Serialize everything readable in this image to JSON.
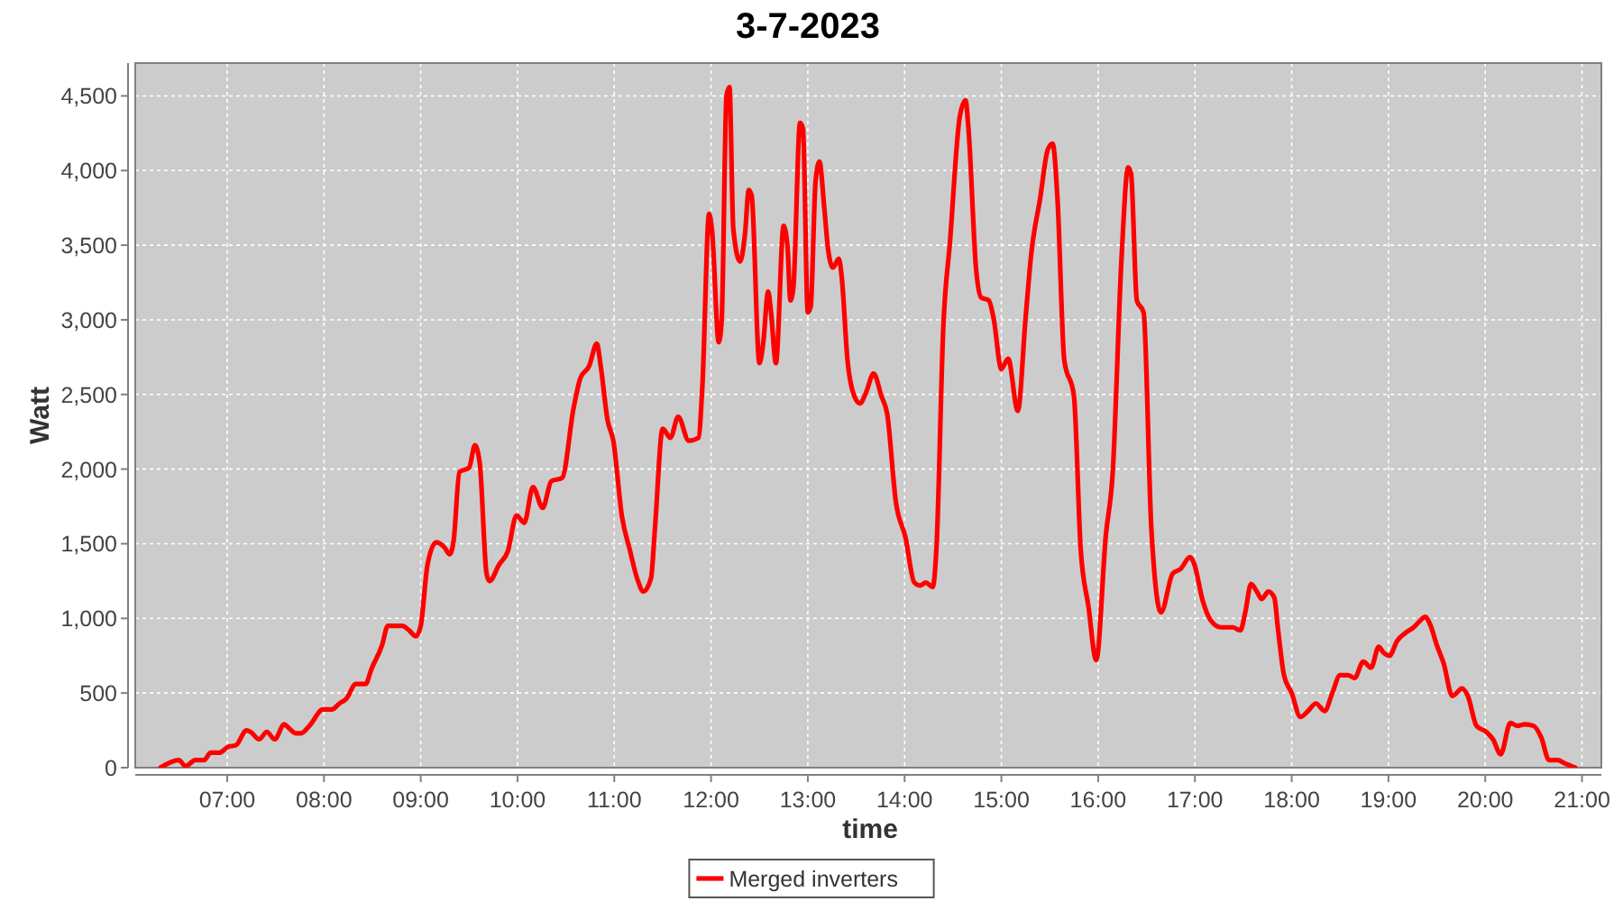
{
  "chart_data": {
    "type": "line",
    "title": "3-7-2023",
    "xlabel": "time",
    "ylabel": "Watt",
    "xlim": [
      6.05,
      21.2
    ],
    "ylim": [
      0,
      4720
    ],
    "xticks": [
      {
        "value": 7,
        "label": "07:00"
      },
      {
        "value": 8,
        "label": "08:00"
      },
      {
        "value": 9,
        "label": "09:00"
      },
      {
        "value": 10,
        "label": "10:00"
      },
      {
        "value": 11,
        "label": "11:00"
      },
      {
        "value": 12,
        "label": "12:00"
      },
      {
        "value": 13,
        "label": "13:00"
      },
      {
        "value": 14,
        "label": "14:00"
      },
      {
        "value": 15,
        "label": "15:00"
      },
      {
        "value": 16,
        "label": "16:00"
      },
      {
        "value": 17,
        "label": "17:00"
      },
      {
        "value": 18,
        "label": "18:00"
      },
      {
        "value": 19,
        "label": "19:00"
      },
      {
        "value": 20,
        "label": "20:00"
      },
      {
        "value": 21,
        "label": "21:00"
      }
    ],
    "yticks": [
      0,
      500,
      {
        "value": 1000,
        "label": "1,000"
      },
      {
        "value": 1500,
        "label": "1,500"
      },
      {
        "value": 2000,
        "label": "2,000"
      },
      {
        "value": 2500,
        "label": "2,500"
      },
      {
        "value": 3000,
        "label": "3,000"
      },
      {
        "value": 3500,
        "label": "3,500"
      },
      {
        "value": 4000,
        "label": "4,000"
      },
      {
        "value": 4500,
        "label": "4,500"
      }
    ],
    "grid": true,
    "legend": "bottom",
    "line_style": "solid",
    "x": [
      6.31,
      6.5,
      6.57,
      6.67,
      6.76,
      6.83,
      6.92,
      7.01,
      7.09,
      7.2,
      7.24,
      7.33,
      7.41,
      7.49,
      7.59,
      7.63,
      7.71,
      7.76,
      7.85,
      7.99,
      8.08,
      8.16,
      8.23,
      8.33,
      8.43,
      8.49,
      8.6,
      8.66,
      8.81,
      8.88,
      8.95,
      9.0,
      9.07,
      9.16,
      9.24,
      9.3,
      9.34,
      9.4,
      9.5,
      9.56,
      9.61,
      9.68,
      9.71,
      9.81,
      9.9,
      9.99,
      10.07,
      10.16,
      10.26,
      10.35,
      10.46,
      10.58,
      10.65,
      10.74,
      10.82,
      10.86,
      10.93,
      10.99,
      11.08,
      11.16,
      11.24,
      11.3,
      11.38,
      11.42,
      11.5,
      11.58,
      11.66,
      11.77,
      11.87,
      11.91,
      11.98,
      12.01,
      12.08,
      12.11,
      12.16,
      12.19,
      12.23,
      12.3,
      12.35,
      12.39,
      12.42,
      12.5,
      12.54,
      12.59,
      12.62,
      12.67,
      12.75,
      12.79,
      12.82,
      12.85,
      12.92,
      12.95,
      13.0,
      13.03,
      13.08,
      13.12,
      13.17,
      13.21,
      13.26,
      13.32,
      13.35,
      13.41,
      13.48,
      13.54,
      13.6,
      13.68,
      13.76,
      13.82,
      13.91,
      14.01,
      14.1,
      14.16,
      14.22,
      14.29,
      14.33,
      14.4,
      14.47,
      14.57,
      14.63,
      14.66,
      14.74,
      14.79,
      14.87,
      14.92,
      15.0,
      15.07,
      15.17,
      15.25,
      15.31,
      15.4,
      15.48,
      15.53,
      15.58,
      15.65,
      15.75,
      15.82,
      15.9,
      15.98,
      16.08,
      16.15,
      16.24,
      16.31,
      16.34,
      16.4,
      16.47,
      16.55,
      16.65,
      16.77,
      16.85,
      16.95,
      16.99,
      17.08,
      17.16,
      17.27,
      17.39,
      17.47,
      17.52,
      17.58,
      17.64,
      17.69,
      17.76,
      17.82,
      17.86,
      17.92,
      18.0,
      18.09,
      18.17,
      18.25,
      18.34,
      18.42,
      18.5,
      18.58,
      18.65,
      18.74,
      18.82,
      18.9,
      18.95,
      19.01,
      19.09,
      19.17,
      19.26,
      19.32,
      19.38,
      19.43,
      19.5,
      19.57,
      19.66,
      19.76,
      19.82,
      19.91,
      20.01,
      20.08,
      20.16,
      20.26,
      20.33,
      20.41,
      20.5,
      20.58,
      20.66,
      20.75,
      20.82,
      20.93
    ],
    "series": [
      {
        "name": "Merged inverters",
        "color": "#ff0000",
        "values": [
          0,
          50,
          10,
          50,
          50,
          100,
          100,
          140,
          150,
          250,
          240,
          190,
          240,
          190,
          290,
          270,
          230,
          230,
          280,
          390,
          390,
          430,
          460,
          560,
          560,
          660,
          820,
          950,
          950,
          920,
          880,
          950,
          1360,
          1510,
          1480,
          1430,
          1520,
          1980,
          2010,
          2160,
          2040,
          1300,
          1250,
          1360,
          1450,
          1690,
          1640,
          1880,
          1740,
          1920,
          1940,
          2410,
          2610,
          2690,
          2840,
          2690,
          2330,
          2190,
          1680,
          1460,
          1260,
          1180,
          1270,
          1600,
          2270,
          2210,
          2350,
          2190,
          2210,
          2550,
          3710,
          3600,
          2850,
          3000,
          4500,
          4560,
          3610,
          3390,
          3570,
          3870,
          3830,
          2710,
          2850,
          3190,
          3050,
          2710,
          3630,
          3490,
          3130,
          3210,
          4320,
          4280,
          3050,
          3090,
          3930,
          4060,
          3750,
          3470,
          3350,
          3410,
          3290,
          2730,
          2490,
          2440,
          2510,
          2640,
          2490,
          2370,
          1780,
          1540,
          1240,
          1220,
          1240,
          1210,
          1480,
          2950,
          3530,
          4360,
          4470,
          4280,
          3330,
          3150,
          3130,
          3010,
          2670,
          2740,
          2390,
          3010,
          3450,
          3810,
          4140,
          4180,
          3810,
          2730,
          2490,
          1460,
          1080,
          720,
          1560,
          1970,
          3390,
          4020,
          3980,
          3130,
          3050,
          1600,
          1040,
          1300,
          1330,
          1410,
          1370,
          1120,
          990,
          940,
          940,
          920,
          1040,
          1230,
          1180,
          1130,
          1180,
          1140,
          920,
          620,
          500,
          340,
          380,
          430,
          380,
          500,
          620,
          620,
          600,
          710,
          670,
          810,
          770,
          750,
          850,
          900,
          940,
          980,
          1010,
          960,
          820,
          700,
          480,
          530,
          480,
          280,
          240,
          190,
          90,
          300,
          280,
          290,
          280,
          200,
          50,
          50,
          30,
          0
        ]
      }
    ]
  }
}
